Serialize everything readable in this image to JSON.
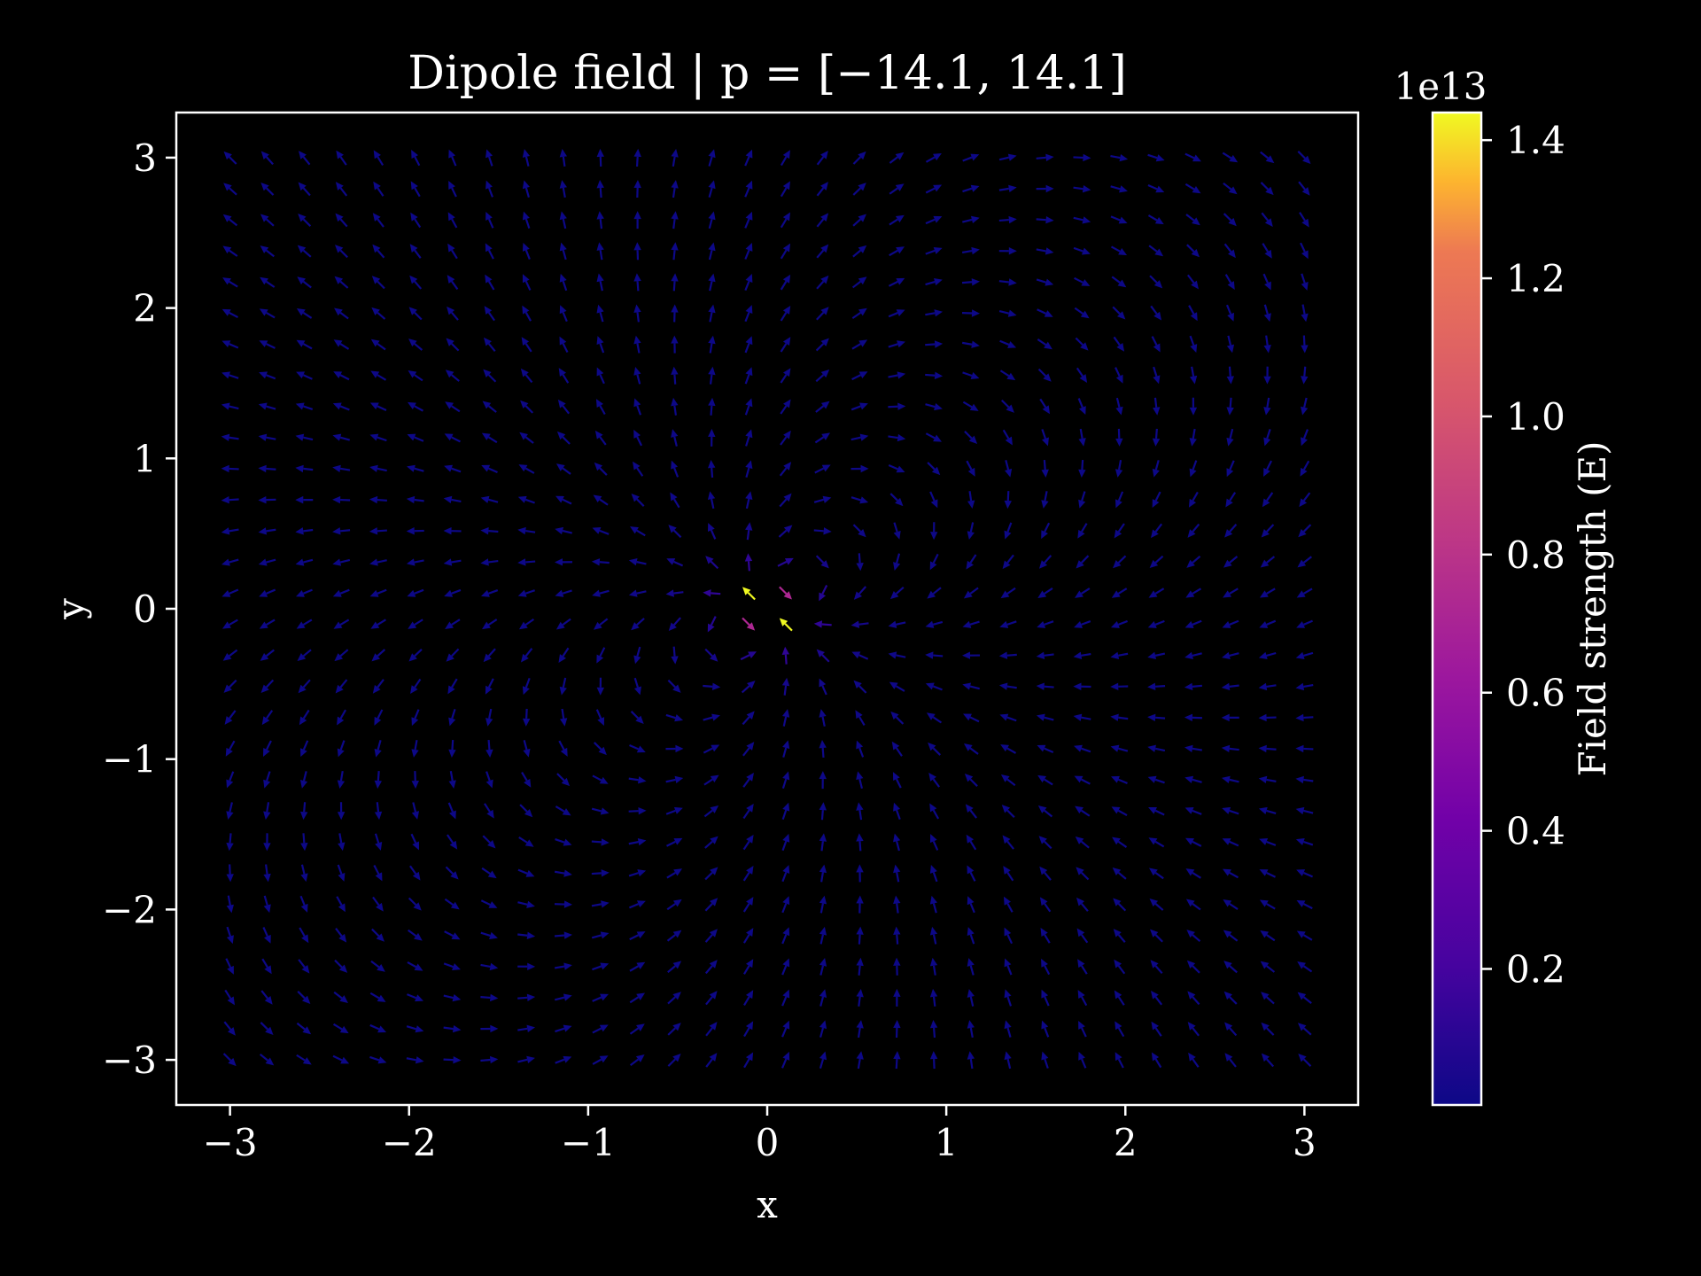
{
  "chart_data": {
    "type": "quiver",
    "title": "Dipole field | p = [−14.1, 14.1]",
    "xlabel": "x",
    "ylabel": "y",
    "xlim": [
      -3.3,
      3.3
    ],
    "ylim": [
      -3.3,
      3.3
    ],
    "xticks": [
      -3,
      -2,
      -1,
      0,
      1,
      2,
      3
    ],
    "yticks": [
      -3,
      -2,
      -1,
      0,
      1,
      2,
      3
    ],
    "xtick_labels": [
      "−3",
      "−2",
      "−1",
      "0",
      "1",
      "2",
      "3"
    ],
    "ytick_labels": [
      "−3",
      "−2",
      "−1",
      "0",
      "1",
      "2",
      "3"
    ],
    "dipole_moment": [
      -14.1,
      14.1
    ],
    "grid": {
      "x_range": [
        -3,
        3
      ],
      "y_range": [
        -3,
        3
      ],
      "n": 30
    },
    "grid_lines": false,
    "colorbar": {
      "label": "Field strength (E)",
      "offset_text": "1e13",
      "colormap": "plasma",
      "range": [
        0.003,
        1.44
      ],
      "ticks": [
        0.2,
        0.4,
        0.6,
        0.8,
        1.0,
        1.2,
        1.4
      ],
      "tick_labels": [
        "0.2",
        "0.4",
        "0.6",
        "0.8",
        "1.0",
        "1.2",
        "1.4"
      ]
    }
  },
  "colors": {
    "background": "#000000",
    "foreground": "#ffffff"
  }
}
